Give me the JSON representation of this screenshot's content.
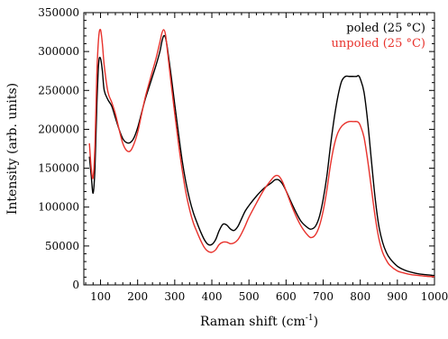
{
  "chart_data": {
    "type": "line",
    "title": "",
    "xlabel": "Raman shift (cm",
    "xlabel_sup": "-1",
    "xlabel_close": ")",
    "ylabel": "Intensity (arb. units)",
    "xlim": [
      55,
      1000
    ],
    "ylim": [
      0,
      350000
    ],
    "x_ticks": [
      100,
      200,
      300,
      400,
      500,
      600,
      700,
      800,
      900,
      1000
    ],
    "y_ticks": [
      0,
      50000,
      100000,
      150000,
      200000,
      250000,
      300000,
      350000
    ],
    "grid": false,
    "legend_position": "top-right",
    "series": [
      {
        "name": "poled (25 °C)",
        "color": "#000000",
        "x": [
          70,
          75,
          80,
          85,
          90,
          95,
          100,
          105,
          110,
          120,
          130,
          140,
          150,
          160,
          170,
          180,
          190,
          200,
          210,
          220,
          230,
          240,
          250,
          260,
          265,
          270,
          275,
          280,
          290,
          300,
          310,
          320,
          330,
          340,
          350,
          360,
          370,
          380,
          390,
          400,
          410,
          420,
          430,
          440,
          450,
          460,
          470,
          480,
          490,
          500,
          520,
          540,
          560,
          570,
          580,
          590,
          600,
          620,
          640,
          660,
          670,
          680,
          690,
          700,
          710,
          720,
          730,
          740,
          750,
          760,
          770,
          780,
          790,
          795,
          800,
          810,
          820,
          830,
          840,
          850,
          860,
          870,
          880,
          900,
          920,
          940,
          960,
          980,
          1000
        ],
        "y": [
          165000,
          140000,
          118000,
          150000,
          230000,
          285000,
          291000,
          275000,
          250000,
          238000,
          230000,
          215000,
          200000,
          188000,
          183000,
          183000,
          189000,
          202000,
          220000,
          238000,
          253000,
          268000,
          283000,
          300000,
          312000,
          320000,
          318000,
          305000,
          270000,
          232000,
          195000,
          160000,
          132000,
          110000,
          93000,
          80000,
          68000,
          58000,
          52000,
          52000,
          58000,
          70000,
          78000,
          77000,
          72000,
          70000,
          75000,
          85000,
          95000,
          102000,
          114000,
          124000,
          131000,
          135000,
          135000,
          130000,
          121000,
          100000,
          82000,
          73000,
          72000,
          76000,
          88000,
          110000,
          140000,
          180000,
          215000,
          243000,
          262000,
          268000,
          268000,
          268000,
          268000,
          269000,
          265000,
          248000,
          210000,
          160000,
          112000,
          76000,
          55000,
          42000,
          34000,
          24000,
          19000,
          16000,
          14000,
          13000,
          12000
        ]
      },
      {
        "name": "unpoled (25 °C)",
        "color": "#e8322c",
        "x": [
          70,
          75,
          80,
          85,
          90,
          95,
          100,
          105,
          110,
          120,
          130,
          140,
          150,
          160,
          170,
          180,
          190,
          200,
          210,
          220,
          230,
          240,
          250,
          260,
          265,
          270,
          275,
          280,
          290,
          300,
          310,
          320,
          330,
          340,
          350,
          360,
          370,
          380,
          390,
          400,
          410,
          420,
          430,
          440,
          450,
          460,
          470,
          480,
          490,
          500,
          520,
          540,
          560,
          570,
          580,
          590,
          600,
          620,
          640,
          660,
          670,
          680,
          690,
          700,
          710,
          720,
          730,
          740,
          750,
          760,
          770,
          780,
          790,
          795,
          800,
          810,
          820,
          830,
          840,
          850,
          860,
          870,
          880,
          900,
          920,
          940,
          960,
          980,
          1000
        ],
        "y": [
          182000,
          150000,
          138000,
          180000,
          270000,
          318000,
          328000,
          310000,
          282000,
          248000,
          235000,
          220000,
          200000,
          182000,
          173000,
          172000,
          181000,
          196000,
          218000,
          240000,
          258000,
          275000,
          292000,
          312000,
          323000,
          328000,
          322000,
          302000,
          260000,
          220000,
          182000,
          148000,
          119000,
          97000,
          80000,
          68000,
          57000,
          48000,
          43000,
          42000,
          45000,
          52000,
          55000,
          55000,
          53000,
          54000,
          58000,
          66000,
          76000,
          87000,
          105000,
          122000,
          135000,
          140000,
          140000,
          133000,
          121000,
          96000,
          76000,
          63000,
          61000,
          65000,
          76000,
          95000,
          122000,
          155000,
          180000,
          196000,
          204000,
          208000,
          210000,
          210000,
          210000,
          209000,
          205000,
          190000,
          160000,
          124000,
          88000,
          60000,
          42000,
          32000,
          25000,
          18000,
          15000,
          13000,
          12000,
          11000,
          10500
        ]
      }
    ]
  }
}
